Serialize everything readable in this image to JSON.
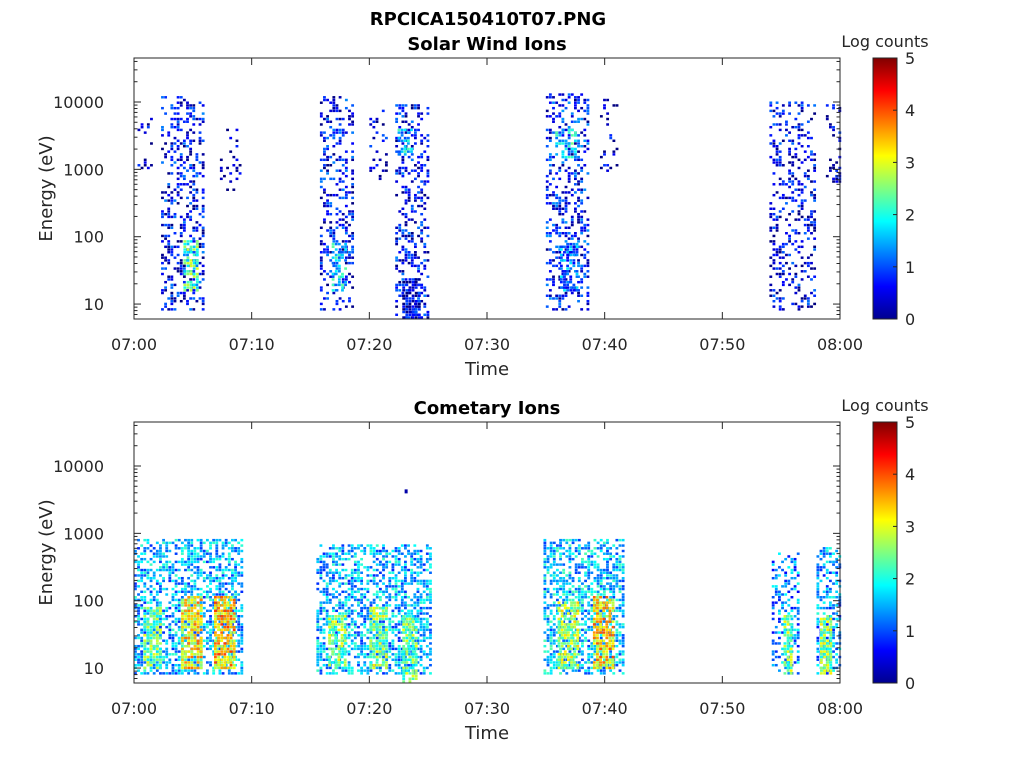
{
  "figure_title": "RPCICA150410T07.PNG",
  "colorbar_ticks": [
    "0",
    "1",
    "2",
    "3",
    "4",
    "5"
  ],
  "chart_data": [
    {
      "type": "heatmap",
      "title": "Solar Wind Ions",
      "xlabel": "Time",
      "ylabel": "Energy (eV)",
      "x_tick_labels": [
        "07:00",
        "07:10",
        "07:20",
        "07:30",
        "07:40",
        "07:50",
        "08:00"
      ],
      "y_tick_labels": [
        "10",
        "100",
        "1000",
        "10000"
      ],
      "x_range_minutes": [
        0,
        60
      ],
      "y_range_eV": [
        6,
        45000
      ],
      "y_scale": "log",
      "colorbar_label": "Log counts",
      "colorbar_range": [
        0,
        5
      ],
      "colormap": "jet",
      "bursts": [
        {
          "t_start": 0.3,
          "t_end": 1.6,
          "e_min": 600,
          "e_max": 6000,
          "density": 0.18,
          "level": 0.35
        },
        {
          "t_start": 2.3,
          "t_end": 5.8,
          "e_min": 8,
          "e_max": 12000,
          "density": 0.32,
          "level": 0.6
        },
        {
          "t_start": 4.2,
          "t_end": 5.4,
          "e_min": 15,
          "e_max": 90,
          "density": 0.7,
          "level": 2.3
        },
        {
          "t_start": 7.3,
          "t_end": 9.0,
          "e_min": 400,
          "e_max": 5000,
          "density": 0.15,
          "level": 0.3
        },
        {
          "t_start": 15.8,
          "t_end": 18.5,
          "e_min": 8,
          "e_max": 12000,
          "density": 0.32,
          "level": 0.6
        },
        {
          "t_start": 16.8,
          "t_end": 18.0,
          "e_min": 15,
          "e_max": 80,
          "density": 0.55,
          "level": 1.7
        },
        {
          "t_start": 20.0,
          "t_end": 21.5,
          "e_min": 500,
          "e_max": 8000,
          "density": 0.15,
          "level": 0.4
        },
        {
          "t_start": 22.2,
          "t_end": 25.0,
          "e_min": 6,
          "e_max": 9000,
          "density": 0.3,
          "level": 0.6
        },
        {
          "t_start": 22.8,
          "t_end": 24.2,
          "e_min": 6,
          "e_max": 25,
          "density": 0.8,
          "level": 0.4
        },
        {
          "t_start": 22.4,
          "t_end": 23.5,
          "e_min": 1500,
          "e_max": 4000,
          "density": 0.5,
          "level": 1.6
        },
        {
          "t_start": 35.0,
          "t_end": 38.5,
          "e_min": 8,
          "e_max": 14000,
          "density": 0.32,
          "level": 0.7
        },
        {
          "t_start": 35.8,
          "t_end": 37.4,
          "e_min": 1500,
          "e_max": 4000,
          "density": 0.55,
          "level": 1.8
        },
        {
          "t_start": 36.2,
          "t_end": 37.6,
          "e_min": 15,
          "e_max": 80,
          "density": 0.6,
          "level": 1.2
        },
        {
          "t_start": 39.6,
          "t_end": 41.0,
          "e_min": 700,
          "e_max": 12000,
          "density": 0.12,
          "level": 0.3
        },
        {
          "t_start": 54.0,
          "t_end": 57.8,
          "e_min": 8,
          "e_max": 10000,
          "density": 0.3,
          "level": 0.5
        },
        {
          "t_start": 58.8,
          "t_end": 60.0,
          "e_min": 600,
          "e_max": 9000,
          "density": 0.18,
          "level": 0.3
        }
      ]
    },
    {
      "type": "heatmap",
      "title": "Cometary Ions",
      "xlabel": "Time",
      "ylabel": "Energy (eV)",
      "x_tick_labels": [
        "07:00",
        "07:10",
        "07:20",
        "07:30",
        "07:40",
        "07:50",
        "08:00"
      ],
      "y_tick_labels": [
        "10",
        "100",
        "1000",
        "10000"
      ],
      "x_range_minutes": [
        0,
        60
      ],
      "y_range_eV": [
        6,
        45000
      ],
      "y_scale": "log",
      "colorbar_label": "Log counts",
      "colorbar_range": [
        0,
        5
      ],
      "colormap": "jet",
      "bursts": [
        {
          "t_start": 0.0,
          "t_end": 9.3,
          "e_min": 8,
          "e_max": 800,
          "density": 0.55,
          "level": 1.5
        },
        {
          "t_start": 0.8,
          "t_end": 2.2,
          "e_min": 10,
          "e_max": 80,
          "density": 0.75,
          "level": 2.4
        },
        {
          "t_start": 4.0,
          "t_end": 5.6,
          "e_min": 10,
          "e_max": 120,
          "density": 0.8,
          "level": 3.2
        },
        {
          "t_start": 6.8,
          "t_end": 8.6,
          "e_min": 10,
          "e_max": 120,
          "density": 0.85,
          "level": 3.4
        },
        {
          "t_start": 15.5,
          "t_end": 25.2,
          "e_min": 8,
          "e_max": 700,
          "density": 0.55,
          "level": 1.5
        },
        {
          "t_start": 16.5,
          "t_end": 18.0,
          "e_min": 10,
          "e_max": 60,
          "density": 0.7,
          "level": 2.5
        },
        {
          "t_start": 20.0,
          "t_end": 21.5,
          "e_min": 10,
          "e_max": 80,
          "density": 0.7,
          "level": 2.6
        },
        {
          "t_start": 22.8,
          "t_end": 24.0,
          "e_min": 6,
          "e_max": 60,
          "density": 0.8,
          "level": 2.4
        },
        {
          "t_start": 34.8,
          "t_end": 41.5,
          "e_min": 8,
          "e_max": 800,
          "density": 0.55,
          "level": 1.6
        },
        {
          "t_start": 36.0,
          "t_end": 37.6,
          "e_min": 10,
          "e_max": 100,
          "density": 0.75,
          "level": 2.7
        },
        {
          "t_start": 39.0,
          "t_end": 40.6,
          "e_min": 10,
          "e_max": 120,
          "density": 0.8,
          "level": 3.3
        },
        {
          "t_start": 54.2,
          "t_end": 56.5,
          "e_min": 8,
          "e_max": 500,
          "density": 0.4,
          "level": 1.3
        },
        {
          "t_start": 55.2,
          "t_end": 55.8,
          "e_min": 8,
          "e_max": 60,
          "density": 0.8,
          "level": 2.5
        },
        {
          "t_start": 58.0,
          "t_end": 60.0,
          "e_min": 8,
          "e_max": 600,
          "density": 0.5,
          "level": 1.4
        },
        {
          "t_start": 58.3,
          "t_end": 59.2,
          "e_min": 8,
          "e_max": 60,
          "density": 0.8,
          "level": 2.6
        }
      ],
      "points": [
        {
          "t": 23.0,
          "e": 4200,
          "level": 0.2
        }
      ]
    }
  ]
}
